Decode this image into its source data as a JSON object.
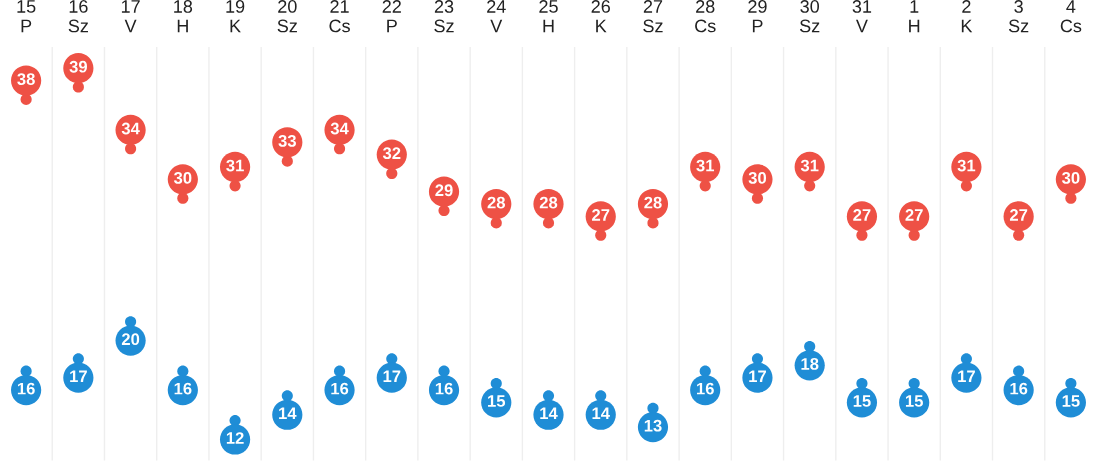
{
  "chart_data": {
    "type": "scatter",
    "categories": [
      "15\nP",
      "16\nSz",
      "17\nV",
      "18\nH",
      "19\nK",
      "20\nSz",
      "21\nCs",
      "22\nP",
      "23\nSz",
      "24\nV",
      "25\nH",
      "26\nK",
      "27\nSz",
      "28\nCs",
      "29\nP",
      "30\nSz",
      "31\nV",
      "1\nH",
      "2\nK",
      "3\nSz",
      "4\nCs"
    ],
    "series": [
      {
        "color": "#ee5145",
        "values": [
          38,
          39,
          34,
          30,
          31,
          33,
          34,
          32,
          29,
          28,
          28,
          27,
          28,
          31,
          30,
          31,
          27,
          27,
          31,
          27,
          30
        ]
      },
      {
        "color": "#1f8dd6",
        "values": [
          16,
          17,
          20,
          16,
          12,
          14,
          16,
          17,
          16,
          15,
          14,
          14,
          13,
          16,
          17,
          18,
          15,
          15,
          17,
          16,
          15
        ]
      }
    ],
    "marker": "circle",
    "data_labels": true,
    "tick_labels": "x"
  }
}
